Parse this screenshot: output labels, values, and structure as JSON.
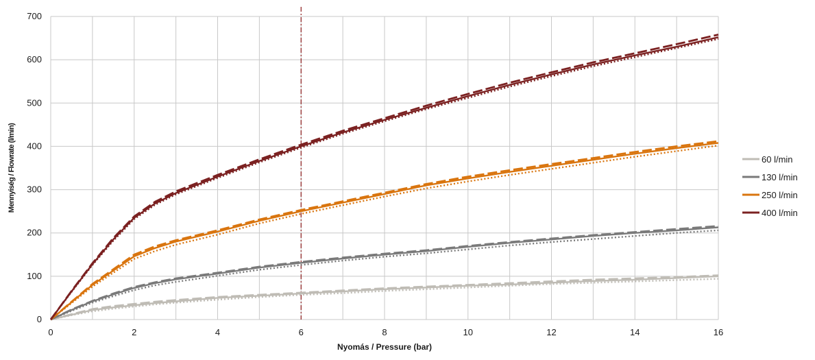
{
  "chart_data": {
    "type": "line",
    "xlabel": "Nyomás / Pressure (bar)",
    "ylabel": "Mennyiség / Flowrate (l/min)",
    "xlim": [
      0,
      16
    ],
    "ylim": [
      0,
      700
    ],
    "x_ticks": [
      0,
      2,
      4,
      6,
      8,
      10,
      12,
      14,
      16
    ],
    "x_tick_labels": [
      "0",
      "2",
      "4",
      "6",
      "8",
      "10",
      "12",
      "14",
      "16"
    ],
    "y_ticks": [
      0,
      100,
      200,
      300,
      400,
      500,
      600,
      700
    ],
    "y_tick_labels": [
      "0",
      "100",
      "200",
      "300",
      "400",
      "500",
      "600",
      "700"
    ],
    "grid": true,
    "legend": "right",
    "reference_line": {
      "x": 6,
      "color": "#8b1a1a",
      "style": "dash-dot"
    },
    "x": [
      0,
      0.5,
      1,
      1.5,
      2,
      2.5,
      3,
      4,
      5,
      6,
      7,
      8,
      9,
      10,
      11,
      12,
      13,
      14,
      15,
      16
    ],
    "series": [
      {
        "name": "60 l/min",
        "legend_label": "60   l/min",
        "color": "#bfbcb5",
        "solid": [
          0,
          11,
          22,
          28,
          33,
          38,
          42,
          50,
          55,
          60,
          65,
          70,
          74,
          78,
          81,
          85,
          89,
          92,
          96,
          100
        ],
        "dashed": [
          0,
          12,
          24,
          31,
          36,
          41,
          45,
          52,
          57,
          62,
          67,
          72,
          76,
          80,
          84,
          88,
          92,
          95,
          98,
          102
        ],
        "dotted": [
          0,
          10,
          19,
          25,
          30,
          35,
          39,
          46,
          52,
          57,
          61,
          66,
          70,
          74,
          78,
          82,
          85,
          88,
          91,
          94
        ]
      },
      {
        "name": "130 l/min",
        "legend_label": "130  l/min",
        "color": "#7a7a7a",
        "solid": [
          0,
          22,
          42,
          58,
          73,
          84,
          93,
          106,
          120,
          131,
          141,
          150,
          158,
          168,
          177,
          185,
          193,
          200,
          206,
          213
        ],
        "dashed": [
          0,
          23,
          43,
          60,
          75,
          86,
          95,
          108,
          122,
          133,
          143,
          152,
          160,
          170,
          179,
          187,
          195,
          202,
          209,
          216
        ],
        "dotted": [
          0,
          20,
          39,
          54,
          68,
          79,
          87,
          101,
          115,
          126,
          136,
          145,
          153,
          162,
          171,
          179,
          186,
          193,
          200,
          206
        ]
      },
      {
        "name": "250 l/min",
        "legend_label": "250  l/min",
        "color": "#d9750f",
        "solid": [
          0,
          40,
          80,
          113,
          146,
          165,
          180,
          203,
          228,
          250,
          270,
          290,
          310,
          326,
          341,
          355,
          369,
          383,
          396,
          408
        ],
        "dashed": [
          0,
          41,
          82,
          116,
          150,
          169,
          183,
          206,
          231,
          253,
          273,
          293,
          313,
          330,
          345,
          359,
          373,
          387,
          400,
          412
        ],
        "dotted": [
          0,
          38,
          76,
          108,
          140,
          158,
          173,
          196,
          222,
          244,
          264,
          284,
          303,
          319,
          334,
          348,
          362,
          376,
          389,
          402
        ]
      },
      {
        "name": "400 l/min",
        "legend_label": "400 l/min",
        "color": "#7b2121",
        "solid": [
          0,
          65,
          128,
          185,
          235,
          268,
          292,
          330,
          366,
          400,
          432,
          461,
          489,
          516,
          542,
          566,
          589,
          610,
          630,
          652
        ],
        "dashed": [
          0,
          66,
          130,
          188,
          238,
          272,
          296,
          334,
          370,
          404,
          436,
          465,
          494,
          521,
          547,
          571,
          594,
          615,
          636,
          658
        ],
        "dotted": [
          0,
          64,
          126,
          182,
          232,
          265,
          289,
          327,
          363,
          397,
          429,
          458,
          486,
          512,
          538,
          562,
          585,
          606,
          627,
          648
        ]
      }
    ]
  }
}
